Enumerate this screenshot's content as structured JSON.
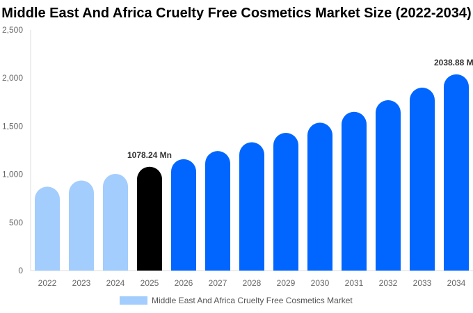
{
  "chart_data": {
    "type": "bar",
    "title": "Middle East And Africa Cruelty Free Cosmetics Market Size (2022-2034)",
    "categories": [
      "2022",
      "2023",
      "2024",
      "2025",
      "2026",
      "2027",
      "2028",
      "2029",
      "2030",
      "2031",
      "2032",
      "2033",
      "2034"
    ],
    "series": [
      {
        "name": "Middle East And Africa Cruelty Free Cosmetics Market",
        "values": [
          872,
          936,
          1004,
          1078.24,
          1157,
          1242,
          1333,
          1431,
          1536,
          1649,
          1770,
          1900,
          2038.88
        ]
      }
    ],
    "data_labels": [
      {
        "index": 3,
        "text": "1078.24 Mn"
      },
      {
        "index": 12,
        "text": "2038.88 Mn"
      }
    ],
    "yticks": [
      "0",
      "500",
      "1,000",
      "1,500",
      "2,000",
      "2,500"
    ],
    "ylim": [
      0,
      2500
    ],
    "xlabel": "",
    "ylabel": "",
    "grid": false,
    "legend": "bottom",
    "colors": {
      "historical": "#a3cdfd",
      "base_year": "#000000",
      "forecast": "#0066ff"
    }
  }
}
